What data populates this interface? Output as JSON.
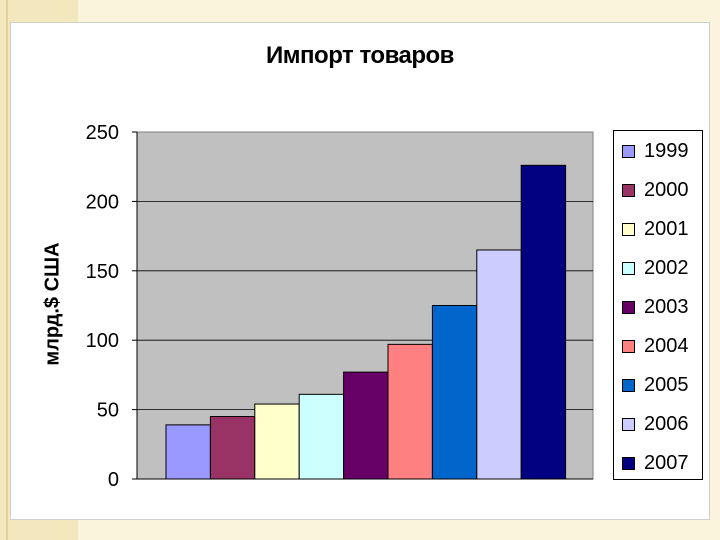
{
  "chart_data": {
    "type": "bar",
    "title": "Импорт товаров",
    "ylabel": "млрд.$ США",
    "xlabel": "",
    "ylim": [
      0,
      250
    ],
    "yticks": [
      0,
      50,
      100,
      150,
      200,
      250
    ],
    "grid": true,
    "legend_position": "right",
    "plot_background": "#c0c0c0",
    "series": [
      {
        "name": "1999",
        "value": 39,
        "color": "#9999ff"
      },
      {
        "name": "2000",
        "value": 45,
        "color": "#993366"
      },
      {
        "name": "2001",
        "value": 54,
        "color": "#ffffcc"
      },
      {
        "name": "2002",
        "value": 61,
        "color": "#ccffff"
      },
      {
        "name": "2003",
        "value": 77,
        "color": "#660066"
      },
      {
        "name": "2004",
        "value": 97,
        "color": "#ff8080"
      },
      {
        "name": "2005",
        "value": 125,
        "color": "#0066cc"
      },
      {
        "name": "2006",
        "value": 165,
        "color": "#ccccff"
      },
      {
        "name": "2007",
        "value": 226,
        "color": "#000080"
      }
    ]
  }
}
